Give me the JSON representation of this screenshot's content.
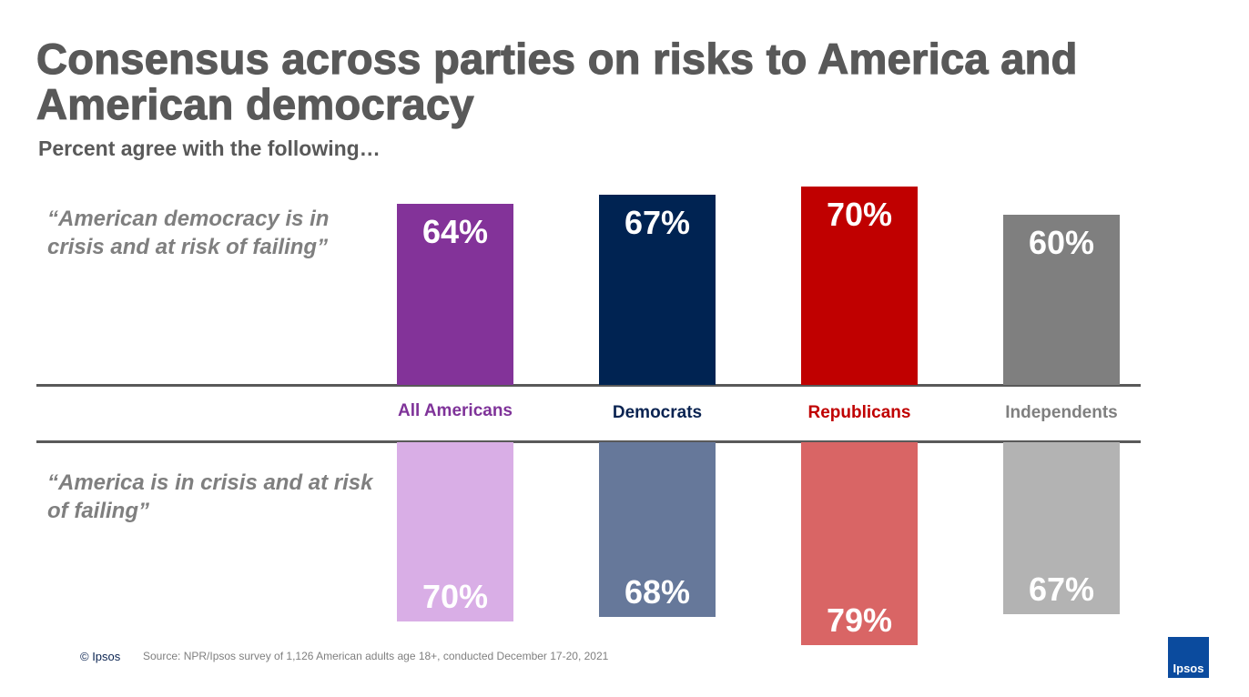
{
  "chart_data": {
    "type": "bar",
    "title": "Consensus across parties on risks to America and American democracy",
    "subtitle": "Percent agree with the following…",
    "categories": [
      "All Americans",
      "Democrats",
      "Republicans",
      "Independents"
    ],
    "category_colors": [
      "#7f3399",
      "#0a2351",
      "#c00000",
      "#7f7f7f"
    ],
    "series": [
      {
        "name": "“American democracy is in crisis and at risk of failing”",
        "direction": "up",
        "colors": [
          "#833399",
          "#002352",
          "#c00000",
          "#7f7f7f"
        ],
        "values": [
          64,
          67,
          70,
          60
        ],
        "value_labels": [
          "64%",
          "67%",
          "70%",
          "60%"
        ]
      },
      {
        "name": "“America is in crisis and at risk of failing”",
        "direction": "down",
        "colors": [
          "#d9aee6",
          "#66789a",
          "#d96565",
          "#b3b3b3"
        ],
        "values": [
          70,
          68,
          79,
          67
        ],
        "value_labels": [
          "70%",
          "68%",
          "79%",
          "67%"
        ]
      }
    ]
  },
  "footer": {
    "copyright": "© Ipsos",
    "source": "Source: NPR/Ipsos survey of 1,126 American adults age 18+, conducted December 17-20, 2021",
    "logo": "Ipsos"
  }
}
